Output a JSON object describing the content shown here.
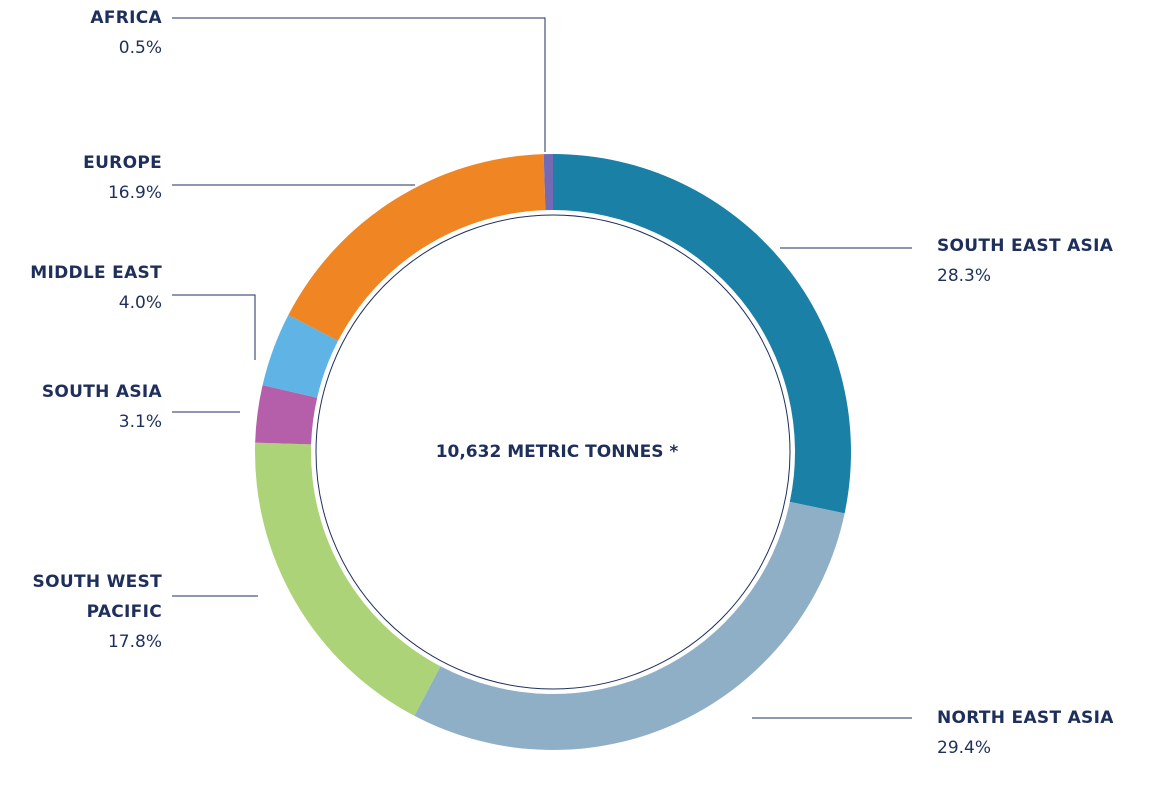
{
  "chart_data": {
    "type": "pie",
    "donut": true,
    "center_label": "10,632 METRIC TONNES *",
    "categories": [
      "SOUTH EAST ASIA",
      "NORTH EAST ASIA",
      "SOUTH WEST PACIFIC",
      "SOUTH ASIA",
      "MIDDLE EAST",
      "EUROPE",
      "AFRICA"
    ],
    "values": [
      28.3,
      29.4,
      17.8,
      3.1,
      4.0,
      16.9,
      0.5
    ],
    "value_labels": [
      "28.3%",
      "29.4%",
      "17.8%",
      "3.1%",
      "4.0%",
      "16.9%",
      "0.5%"
    ],
    "colors": [
      "#1a80a6",
      "#8fafc6",
      "#acd377",
      "#b55ea9",
      "#5fb4e5",
      "#ef8523",
      "#7469b3"
    ]
  }
}
